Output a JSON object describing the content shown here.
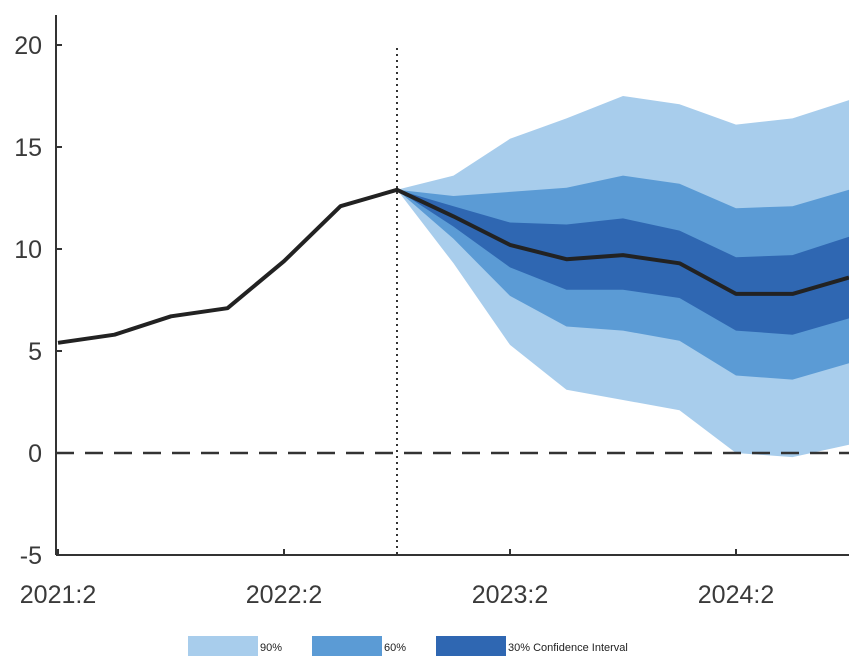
{
  "chart_data": {
    "type": "area",
    "title": "",
    "xlabel": "",
    "ylabel": "",
    "ylim": [
      -5,
      20
    ],
    "yticks": [
      -5,
      0,
      5,
      10,
      15,
      20
    ],
    "xticks": [
      "2021:2",
      "2022:2",
      "2023:2",
      "2024:2"
    ],
    "x": [
      "2021:2",
      "2021:3",
      "2021:4",
      "2022:1",
      "2022:2",
      "2022:3",
      "2022:4",
      "2023:1",
      "2023:2",
      "2023:3",
      "2023:4",
      "2024:1",
      "2024:2",
      "2024:3",
      "2024:4"
    ],
    "forecast_start": "2022:4",
    "baseline": 0,
    "series": [
      {
        "values": [
          5.4,
          5.8,
          6.7,
          7.1,
          9.4,
          12.1,
          12.9,
          11.6,
          10.2,
          9.5,
          9.7,
          9.3,
          7.8,
          7.8,
          8.6
        ]
      }
    ],
    "bands": [
      {
        "name": "90%",
        "color": "#a8cdec",
        "lower": [
          null,
          null,
          null,
          null,
          null,
          null,
          12.9,
          9.3,
          5.3,
          3.1,
          2.6,
          2.1,
          0.0,
          -0.2,
          0.4
        ],
        "upper": [
          null,
          null,
          null,
          null,
          null,
          null,
          12.9,
          13.6,
          15.4,
          16.4,
          17.5,
          17.1,
          16.1,
          16.4,
          17.3
        ]
      },
      {
        "name": "60%",
        "color": "#5b9bd5",
        "lower": [
          null,
          null,
          null,
          null,
          null,
          null,
          12.9,
          10.5,
          7.7,
          6.2,
          6.0,
          5.5,
          3.8,
          3.6,
          4.4
        ],
        "upper": [
          null,
          null,
          null,
          null,
          null,
          null,
          12.9,
          12.6,
          12.8,
          13.0,
          13.6,
          13.2,
          12.0,
          12.1,
          12.9
        ]
      },
      {
        "name": "30% Confidence Interval",
        "color": "#2f67b2",
        "lower": [
          null,
          null,
          null,
          null,
          null,
          null,
          12.9,
          11.1,
          9.1,
          8.0,
          8.0,
          7.6,
          6.0,
          5.8,
          6.6
        ],
        "upper": [
          null,
          null,
          null,
          null,
          null,
          null,
          12.9,
          12.1,
          11.3,
          11.2,
          11.5,
          10.9,
          9.6,
          9.7,
          10.6
        ]
      }
    ],
    "legend": {
      "position": "bottom",
      "entries": [
        "90%",
        "60%",
        "30% Confidence Interval"
      ]
    },
    "grid": false,
    "colors": {
      "line": "#222222",
      "axis": "#333333",
      "zero_line": "#333333"
    }
  }
}
